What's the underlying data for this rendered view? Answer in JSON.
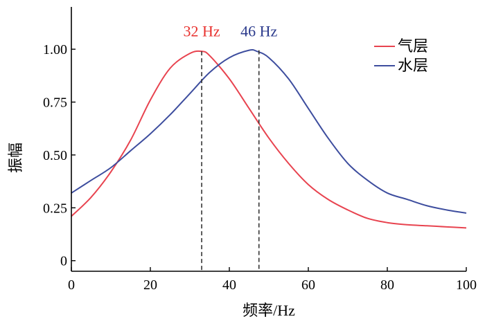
{
  "chart_data": {
    "type": "line",
    "title": "",
    "xlabel": "频率/Hz",
    "ylabel": "振幅",
    "xlim": [
      0,
      100
    ],
    "ylim": [
      -0.05,
      1.2
    ],
    "xticks": [
      "0",
      "20",
      "40",
      "60",
      "80",
      "100"
    ],
    "yticks": [
      "0",
      "0.25",
      "0.50",
      "0.75",
      "1.00"
    ],
    "grid": false,
    "legend_position": "top-right",
    "series": [
      {
        "name": "气层",
        "color": "#e8434f",
        "x": [
          0,
          5,
          10,
          15,
          20,
          25,
          30,
          33,
          35,
          40,
          45,
          50,
          55,
          60,
          65,
          70,
          75,
          80,
          85,
          90,
          95,
          100
        ],
        "y": [
          0.21,
          0.3,
          0.42,
          0.57,
          0.76,
          0.91,
          0.98,
          0.99,
          0.97,
          0.86,
          0.72,
          0.58,
          0.46,
          0.36,
          0.29,
          0.24,
          0.2,
          0.18,
          0.17,
          0.165,
          0.16,
          0.155
        ]
      },
      {
        "name": "水层",
        "color": "#3d4d9e",
        "x": [
          0,
          5,
          10,
          15,
          20,
          25,
          30,
          35,
          40,
          45,
          47,
          50,
          55,
          60,
          65,
          70,
          75,
          80,
          85,
          90,
          95,
          100
        ],
        "y": [
          0.32,
          0.38,
          0.44,
          0.52,
          0.6,
          0.69,
          0.79,
          0.89,
          0.96,
          0.995,
          0.99,
          0.96,
          0.86,
          0.72,
          0.58,
          0.46,
          0.38,
          0.32,
          0.29,
          0.26,
          0.24,
          0.225
        ]
      }
    ],
    "annotations": [
      {
        "text": "32 Hz",
        "x": 33,
        "peak_y": 0.99,
        "color": "#e8312e"
      },
      {
        "text": "46 Hz",
        "x": 47.5,
        "peak_y": 0.995,
        "color": "#2b3a8c"
      }
    ]
  }
}
